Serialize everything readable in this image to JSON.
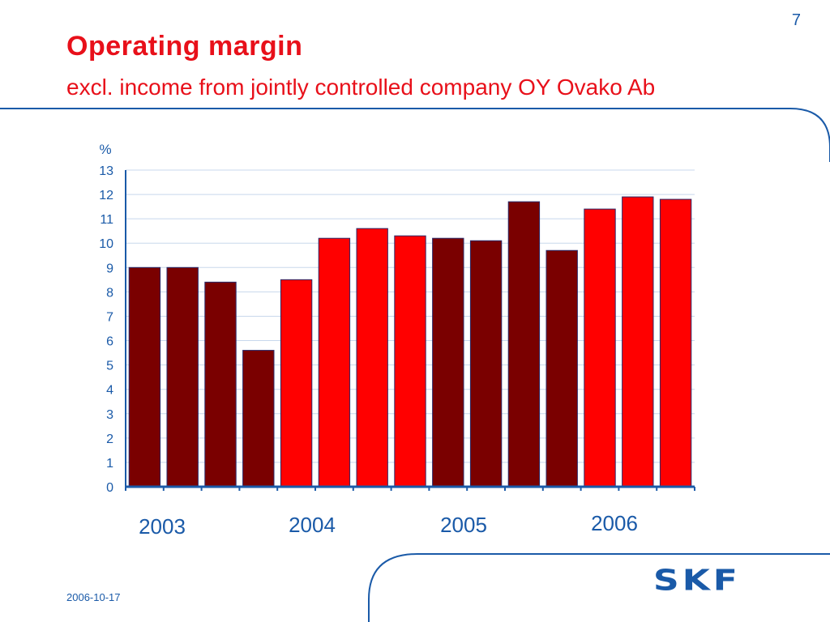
{
  "slide": {
    "page_number": "7",
    "title": "Operating margin",
    "subtitle": "excl. income from jointly controlled company OY Ovako Ab",
    "date": "2006-10-17",
    "logo_text": "SKF"
  },
  "colors": {
    "accent": "#e8101a",
    "brand_blue": "#1a5aa8",
    "bar_dark": "#7a0000",
    "bar_bright": "#ff0000",
    "grid": "#c8d8ec"
  },
  "chart_data": {
    "type": "bar",
    "ylabel": "%",
    "ylim": [
      0,
      13
    ],
    "yticks": [
      "0",
      "1",
      "2",
      "3",
      "4",
      "5",
      "6",
      "7",
      "8",
      "9",
      "10",
      "11",
      "12",
      "13"
    ],
    "year_labels": [
      "2003",
      "2004",
      "2005",
      "2006"
    ],
    "series": [
      {
        "values": [
          9.0,
          9.0,
          8.4,
          5.6,
          8.5,
          10.2,
          10.6,
          10.3,
          10.2,
          10.1,
          11.7,
          9.7,
          11.4,
          11.9,
          11.8
        ],
        "color_groups": [
          "dark",
          "dark",
          "dark",
          "dark",
          "bright",
          "bright",
          "bright",
          "bright",
          "dark",
          "dark",
          "dark",
          "dark",
          "bright",
          "bright",
          "bright"
        ]
      }
    ],
    "grid": true,
    "legend": "none"
  }
}
